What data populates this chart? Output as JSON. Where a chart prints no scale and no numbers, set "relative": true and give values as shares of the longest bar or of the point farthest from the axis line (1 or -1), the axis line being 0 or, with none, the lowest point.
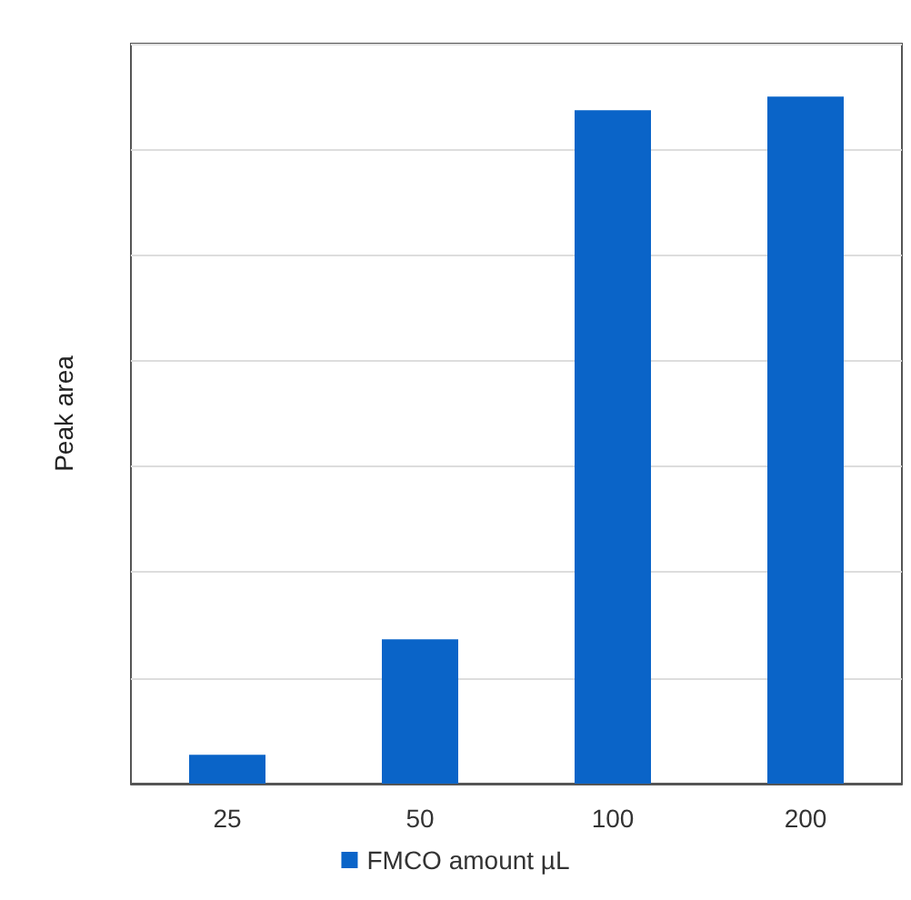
{
  "chart_data": {
    "type": "bar",
    "ylabel": "Peak area",
    "categories": [
      "25",
      "50",
      "100",
      "200"
    ],
    "series": [
      {
        "name": "FMCO amount µL",
        "color": "#0a64c8",
        "values": [
          0.042,
          0.21,
          0.98,
          1
        ]
      }
    ],
    "relative": true,
    "grid": "y",
    "legend": "bottom"
  }
}
